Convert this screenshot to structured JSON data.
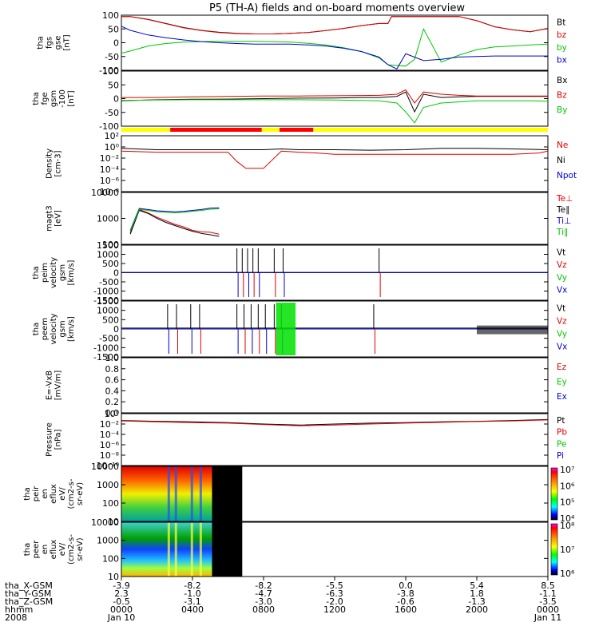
{
  "chart_data": [
    {
      "type": "line",
      "panel": "fgs_gse",
      "ylabel": [
        "tha",
        "fgs",
        "gse",
        "[nT]"
      ],
      "ylim": [
        -100,
        100
      ],
      "yticks": [
        "100",
        "50",
        "0",
        "-50",
        "-100"
      ],
      "series": [
        {
          "name": "Bt",
          "color": "#000000",
          "x": [
            0,
            0.5,
            1.5,
            2.5,
            3.5,
            4.5,
            5.5,
            6.5,
            7.5,
            8.5,
            9.5,
            10.5,
            11.5,
            12.5,
            13.5,
            14.5,
            15,
            15.2,
            16.5,
            17.5,
            18,
            19,
            20,
            21,
            22,
            23,
            24
          ],
          "y": [
            95,
            95,
            85,
            70,
            55,
            45,
            38,
            34,
            32,
            32,
            34,
            37,
            44,
            52,
            62,
            70,
            70,
            95,
            95,
            95,
            95,
            95,
            80,
            58,
            47,
            40,
            52
          ]
        },
        {
          "name": "bz",
          "color": "#e00000",
          "x": [
            0,
            0.5,
            1.5,
            2.5,
            3.5,
            4.5,
            5.5,
            6.5,
            7.5,
            8.5,
            9.5,
            10.5,
            11.5,
            12.5,
            13.5,
            14.5,
            15,
            15.2,
            16.5,
            17.5,
            18,
            19,
            20,
            21,
            22,
            23,
            24
          ],
          "y": [
            95,
            95,
            84,
            69,
            54,
            44,
            37,
            33,
            32,
            32,
            34,
            37,
            44,
            52,
            62,
            70,
            70,
            95,
            95,
            95,
            95,
            95,
            80,
            58,
            47,
            40,
            52
          ]
        },
        {
          "name": "by",
          "color": "#00c800",
          "x": [
            0,
            0.5,
            1.5,
            2.5,
            3.5,
            4.5,
            5.5,
            6.5,
            7.5,
            8.5,
            9.5,
            10.5,
            11.5,
            12.5,
            13.5,
            14.5,
            15,
            16,
            16.5,
            17,
            18,
            19,
            20,
            21,
            22,
            23,
            24
          ],
          "y": [
            -38,
            -30,
            -12,
            -3,
            2,
            4,
            5,
            5,
            5,
            4,
            2,
            -2,
            -8,
            -18,
            -32,
            -55,
            -80,
            -85,
            -60,
            50,
            -70,
            -45,
            -25,
            -15,
            -12,
            -8,
            -5
          ]
        },
        {
          "name": "bx",
          "color": "#0000d0",
          "x": [
            0,
            0.5,
            1.5,
            2.5,
            3.5,
            4.5,
            5.5,
            6.5,
            7.5,
            8.5,
            9.5,
            10.5,
            11.5,
            12.5,
            13.5,
            14.5,
            15,
            15.5,
            16,
            17,
            18,
            19,
            20,
            21,
            22,
            23,
            24
          ],
          "y": [
            60,
            45,
            28,
            18,
            10,
            4,
            0,
            -3,
            -5,
            -5,
            -5,
            -8,
            -12,
            -20,
            -32,
            -52,
            -80,
            -95,
            -40,
            -65,
            -60,
            -52,
            -50,
            -48,
            -48,
            -48,
            -48
          ]
        }
      ]
    },
    {
      "type": "line",
      "panel": "fge_gsm",
      "ylabel": [
        "tha",
        "fge",
        "gsm",
        "-100",
        "[nT]"
      ],
      "ylim": [
        -125,
        125
      ],
      "yticks": [
        "100",
        "50",
        "0",
        "-50",
        "-100"
      ],
      "series": [
        {
          "name": "Bx",
          "color": "#000000",
          "x": [
            0,
            2,
            4,
            6,
            8,
            10,
            12,
            13.5,
            14.5,
            15.5,
            16,
            16.5,
            17,
            18,
            19,
            20,
            21,
            22,
            23,
            24
          ],
          "y": [
            -10,
            -5,
            -3,
            -2,
            0,
            2,
            3,
            5,
            5,
            10,
            30,
            -60,
            20,
            5,
            8,
            10,
            10,
            10,
            10,
            10
          ]
        },
        {
          "name": "Bz",
          "color": "#e00000",
          "x": [
            0,
            2,
            4,
            6,
            8,
            10,
            12,
            13.5,
            14.5,
            15.5,
            16,
            16.5,
            17,
            18,
            19,
            20,
            21,
            22,
            23,
            24
          ],
          "y": [
            5,
            5,
            8,
            10,
            12,
            12,
            13,
            14,
            15,
            20,
            40,
            -20,
            30,
            20,
            15,
            12,
            12,
            12,
            12,
            12
          ]
        },
        {
          "name": "By",
          "color": "#00c800",
          "x": [
            0,
            2,
            4,
            6,
            8,
            10,
            12,
            13.5,
            14.5,
            15.5,
            16,
            16.5,
            17,
            18,
            19,
            20,
            21,
            22,
            23,
            24
          ],
          "y": [
            -8,
            -6,
            -5,
            -5,
            -5,
            -5,
            -6,
            -8,
            -10,
            -20,
            -60,
            -110,
            -40,
            -20,
            -15,
            -10,
            -10,
            -10,
            -10,
            -12
          ]
        }
      ]
    },
    {
      "type": "line",
      "panel": "density",
      "ylabel": [
        "Density",
        "[cm-3]"
      ],
      "yticks": [
        "10²",
        "10⁰",
        "10⁻²",
        "10⁻⁴",
        "10⁻⁶",
        "10⁻⁸"
      ],
      "series": [
        {
          "name": "Ne",
          "color": "#e00000",
          "x": [
            0,
            2,
            4,
            6,
            6.5,
            7,
            8,
            9,
            10,
            11,
            12,
            14,
            16,
            18,
            20,
            22,
            23.5,
            24
          ],
          "y": [
            0.5,
            0.3,
            0.3,
            0.3,
            0.003,
            0.0001,
            0.0001,
            0.5,
            0.3,
            0.2,
            0.1,
            0.1,
            0.1,
            0.1,
            0.1,
            0.1,
            0.2,
            0.5
          ]
        },
        {
          "name": "Ni",
          "color": "#000000",
          "x": [
            0,
            2,
            4,
            6,
            7,
            8,
            9,
            10,
            12,
            14,
            16,
            18,
            20,
            22,
            24
          ],
          "y": [
            2,
            1,
            1,
            1,
            1,
            1,
            1.5,
            1,
            1,
            0.8,
            1,
            2,
            2,
            1.5,
            1
          ]
        },
        {
          "name": "Npot",
          "color": "#0000d0",
          "x": [],
          "y": []
        }
      ]
    },
    {
      "type": "line",
      "panel": "temperature",
      "ylabel": [
        "magt3",
        "[eV]"
      ],
      "yticks": [
        "10000",
        "1000",
        "100"
      ],
      "series": [
        {
          "name": "Te⊥",
          "color": "#e00000",
          "x": [
            0.5,
            1,
            1.5,
            2,
            2.5,
            3,
            3.5,
            4,
            4.5,
            5,
            5.5
          ],
          "y": [
            150,
            2200,
            1500,
            900,
            600,
            400,
            300,
            200,
            170,
            160,
            130
          ]
        },
        {
          "name": "Te∥",
          "color": "#000000",
          "x": [
            0.5,
            1,
            1.5,
            2,
            2.5,
            3,
            3.5,
            4,
            4.5,
            5,
            5.5
          ],
          "y": [
            130,
            2000,
            1400,
            800,
            500,
            350,
            250,
            180,
            140,
            120,
            100
          ]
        },
        {
          "name": "Ti⊥",
          "color": "#0000d0",
          "x": [
            0.5,
            1,
            1.5,
            2,
            2.5,
            3,
            3.5,
            4,
            4.5,
            5,
            5.5
          ],
          "y": [
            200,
            2500,
            2200,
            1900,
            1800,
            1700,
            1800,
            2000,
            2200,
            2600,
            2700
          ]
        },
        {
          "name": "Ti∥",
          "color": "#00c800",
          "x": [
            0.5,
            1,
            1.5,
            2,
            2.5,
            3,
            3.5,
            4,
            4.5,
            5,
            5.5
          ],
          "y": [
            180,
            2300,
            2000,
            1700,
            1600,
            1500,
            1600,
            1800,
            2000,
            2300,
            2400
          ]
        }
      ]
    },
    {
      "type": "line",
      "panel": "peim_velocity",
      "ylabel": [
        "tha",
        "peim",
        "velocity",
        "gsm",
        "[km/s]"
      ],
      "ylim": [
        -1600,
        1600
      ],
      "yticks": [
        "1500",
        "1000",
        "500",
        "0",
        "-500",
        "-1000",
        "-1500"
      ],
      "series": [
        {
          "name": "Vt",
          "color": "#000000",
          "x": [
            0,
            24
          ],
          "y": [
            20,
            20
          ]
        },
        {
          "name": "Vz",
          "color": "#e00000",
          "x": [
            0,
            24
          ],
          "y": [
            0,
            0
          ]
        },
        {
          "name": "Vy",
          "color": "#00c800",
          "x": [
            0,
            24
          ],
          "y": [
            0,
            0
          ]
        },
        {
          "name": "Vx",
          "color": "#0000d0",
          "x": [
            0,
            24
          ],
          "y": [
            0,
            0
          ]
        }
      ]
    },
    {
      "type": "line",
      "panel": "peem_velocity",
      "ylabel": [
        "tha",
        "peem",
        "velocity",
        "gsm",
        "[km/s]"
      ],
      "ylim": [
        -1600,
        1600
      ],
      "yticks": [
        "1500",
        "1000",
        "500",
        "0",
        "-500",
        "-1000",
        "-1500"
      ],
      "series": [
        {
          "name": "Vt",
          "color": "#000000",
          "x": [
            0,
            24
          ],
          "y": [
            50,
            50
          ]
        },
        {
          "name": "Vz",
          "color": "#e00000",
          "x": [
            0,
            24
          ],
          "y": [
            0,
            0
          ]
        },
        {
          "name": "Vy",
          "color": "#00c800",
          "x": [
            0,
            24
          ],
          "y": [
            0,
            0
          ]
        },
        {
          "name": "Vx",
          "color": "#0000d0",
          "x": [
            0,
            24
          ],
          "y": [
            0,
            0
          ]
        }
      ]
    },
    {
      "type": "line",
      "panel": "efield",
      "ylabel": [
        "E=-VxB",
        "[mV/m]"
      ],
      "ylim": [
        0,
        1
      ],
      "yticks": [
        "1.0",
        "0.8",
        "0.6",
        "0.4",
        "0.2",
        "0.0"
      ],
      "series": [
        {
          "name": "Ez",
          "color": "#e00000",
          "x": [],
          "y": []
        },
        {
          "name": "Ey",
          "color": "#00c800",
          "x": [],
          "y": []
        },
        {
          "name": "Ex",
          "color": "#0000d0",
          "x": [],
          "y": []
        }
      ]
    },
    {
      "type": "line",
      "panel": "pressure",
      "ylabel": [
        "Pressure",
        "[nPa]"
      ],
      "yticks": [
        "10⁰",
        "10⁻²",
        "10⁻⁴",
        "10⁻⁶",
        "10⁻⁸",
        "10⁻¹⁰"
      ],
      "series": [
        {
          "name": "Pt",
          "color": "#000000",
          "x": [
            0,
            2,
            4,
            6,
            8,
            10,
            12,
            14,
            16,
            18,
            20,
            22,
            24
          ],
          "y": [
            0.3,
            0.2,
            0.15,
            0.1,
            0.05,
            0.03,
            0.05,
            0.08,
            0.1,
            0.15,
            0.2,
            0.3,
            0.5
          ]
        },
        {
          "name": "Pb",
          "color": "#e00000",
          "x": [
            0,
            2,
            4,
            6,
            8,
            10,
            12,
            14,
            16,
            18,
            20,
            22,
            24
          ],
          "y": [
            0.25,
            0.15,
            0.1,
            0.08,
            0.04,
            0.02,
            0.03,
            0.05,
            0.08,
            0.12,
            0.18,
            0.25,
            0.4
          ]
        },
        {
          "name": "Pe",
          "color": "#00c800",
          "x": [],
          "y": []
        },
        {
          "name": "Pi",
          "color": "#0000d0",
          "x": [],
          "y": []
        }
      ]
    },
    {
      "type": "heatmap",
      "panel": "peir_spec",
      "ylabel": [
        "tha",
        "peir",
        "en",
        "eflux",
        "eV/",
        "(cm2-s-",
        "sr-eV)"
      ],
      "yticks": [
        "10000",
        "1000",
        "100",
        "10"
      ],
      "colorbar_ticks": [
        "10⁷",
        "10⁶",
        "10⁵",
        "10⁴"
      ]
    },
    {
      "type": "heatmap",
      "panel": "peer_spec",
      "ylabel": [
        "tha",
        "peer",
        "en",
        "eflux",
        "eV/",
        "(cm2-s-",
        "sr-eV)"
      ],
      "yticks": [
        "10000",
        "1000",
        "100",
        "10"
      ],
      "colorbar_ticks": [
        "10⁸",
        "10⁷",
        "10⁶"
      ]
    }
  ],
  "title": "P5 (TH-A) fields and on-board moments overview",
  "ephemeris": {
    "row_labels": [
      "tha_X-GSM",
      "tha_Y-GSM",
      "tha_Z-GSM",
      "hhmm",
      "2008"
    ],
    "columns": [
      {
        "vals": [
          "-3.9",
          "2.3",
          "-0.5",
          "0000",
          "Jan 10"
        ]
      },
      {
        "vals": [
          "-8.2",
          "-1.0",
          "-3.1",
          "0400",
          ""
        ]
      },
      {
        "vals": [
          "-8.2",
          "-4.7",
          "-3.0",
          "0800",
          ""
        ]
      },
      {
        "vals": [
          "-5.5",
          "-6.3",
          "-2.0",
          "1200",
          ""
        ]
      },
      {
        "vals": [
          "0.0",
          "-3.8",
          "-0.6",
          "1600",
          ""
        ]
      },
      {
        "vals": [
          "5.4",
          "1.8",
          "-1.3",
          "2000",
          ""
        ]
      },
      {
        "vals": [
          "8.5",
          "-1.1",
          "-3.5",
          "0000",
          "Jan 11"
        ]
      }
    ]
  },
  "mode_bar": {
    "segments": [
      {
        "from": 0,
        "to": 2.75,
        "color": "#ffff00"
      },
      {
        "from": 2.75,
        "to": 7.9,
        "color": "#ff0000"
      },
      {
        "from": 7.9,
        "to": 8.9,
        "color": "#ffff00"
      },
      {
        "from": 8.9,
        "to": 10.8,
        "color": "#ff0000"
      },
      {
        "from": 10.8,
        "to": 24,
        "color": "#ffff00"
      }
    ]
  }
}
